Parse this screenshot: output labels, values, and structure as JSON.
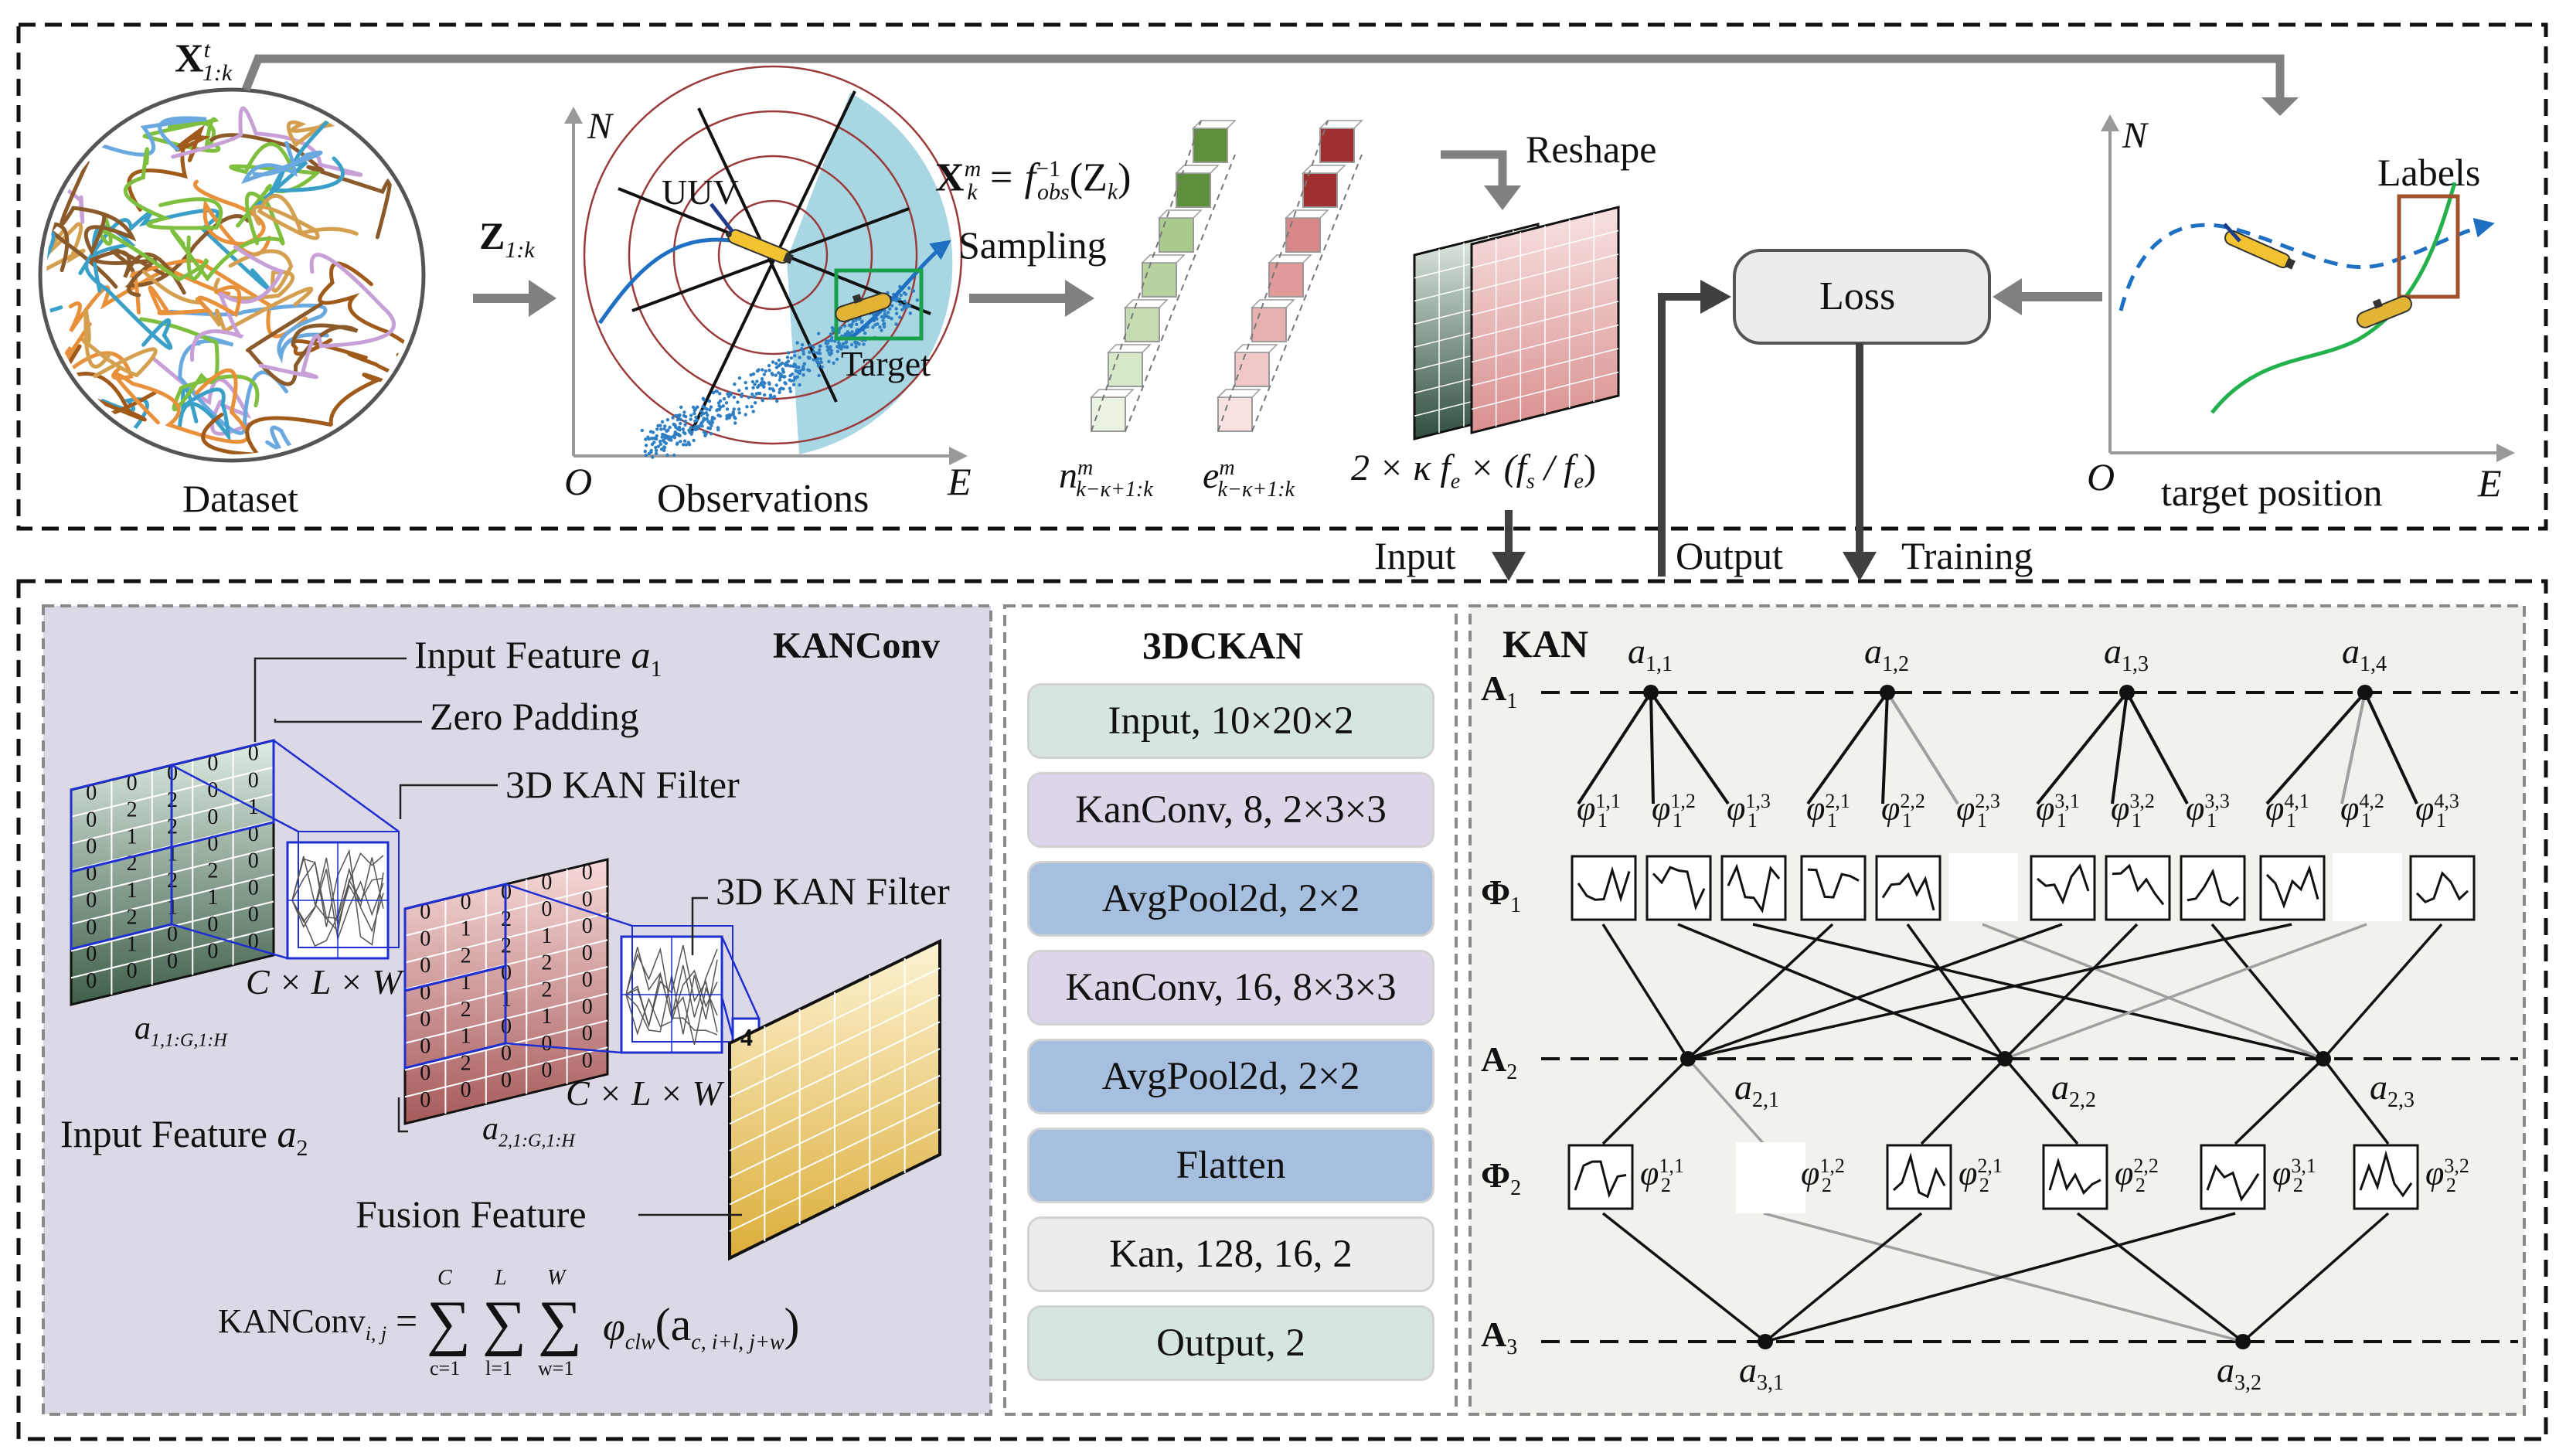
{
  "colors": {
    "kanconv_bg": "#ddd8e6",
    "kan_bg": "#f1f1ee",
    "arrow_gray": "#7f7f7f",
    "sector_blue": "#a9d6e3",
    "grid_green": "#c6dcc8",
    "grid_red": "#e8b8b8",
    "grid_yellow": "#f5dfa0"
  },
  "top": {
    "dataset_label": "Dataset",
    "input_target_sym": "X",
    "input_target_sup": "t",
    "input_target_sub": "1:k",
    "obs_input_sym": "Z",
    "obs_input_sub": "1:k",
    "observation_label": "Observations",
    "axis_n": "N",
    "axis_e": "E",
    "axis_o": "O",
    "uuv_label": "UUV",
    "target_label": "Target",
    "formula_lhs": "X",
    "formula_lhs_sup": "m",
    "formula_lhs_sub": "k",
    "formula_rhs": "= f",
    "formula_rhs_sup": "−1",
    "formula_rhs_sub": "obs",
    "formula_arg": "(Z",
    "formula_arg_sub": "k",
    "formula_close": ")",
    "sampling_label": "Sampling",
    "seq_n": "n",
    "seq_n_sup": "m",
    "seq_n_sub": "k−κ+1:k",
    "seq_e": "e",
    "seq_e_sup": "m",
    "seq_e_sub": "k−κ+1:k",
    "reshape_label": "Reshape",
    "reshape_dims": "2 × κ f",
    "reshape_dims_sub": "e",
    "reshape_dims_tail": "× (f",
    "reshape_dims_sub2": "s",
    "reshape_dims_mid": "/ f",
    "reshape_dims_sub3": "e",
    "reshape_dims_end": ")",
    "loss_label": "Loss",
    "labels_label": "Labels",
    "target_position_label": "target position",
    "input_arrow_label": "Input",
    "output_arrow_label": "Output",
    "training_arrow_label": "Training"
  },
  "kanconv": {
    "title": "KANConv",
    "input_feature_1": "Input Feature ",
    "input_feature_1_var": "a",
    "input_feature_1_sub": "1",
    "zero_padding": "Zero Padding",
    "filter_1": "3D KAN Filter",
    "filter_2": "3D KAN Filter",
    "clw_1": "C × L × W",
    "clw_2": "C × L × W",
    "a1_label": "a",
    "a1_sub": "1,1:G,1:H",
    "a2_label": "a",
    "a2_sub": "2,1:G,1:H",
    "input_feature_2": "Input Feature ",
    "input_feature_2_var": "a",
    "input_feature_2_sub": "2",
    "fusion_feature": "Fusion Feature",
    "filter_value": "4",
    "formula_head": "KANConv",
    "formula_head_sub": "i, j",
    "formula_eq": "=",
    "sum_1_top": "C",
    "sum_1_bottom": "c=1",
    "sum_2_top": "L",
    "sum_2_bottom": "l=1",
    "sum_3_top": "W",
    "sum_3_bottom": "w=1",
    "formula_phi": "φ",
    "formula_phi_sub": "clw",
    "formula_arg": "(a",
    "formula_arg_sub": "c, i+l, j+w",
    "formula_close": ")",
    "grid1_values": [
      [
        "0",
        "0",
        "0",
        "0",
        "0"
      ],
      [
        "0",
        "2",
        "2",
        "0",
        "0"
      ],
      [
        "0",
        "1",
        "2",
        "0",
        "1"
      ],
      [
        "0",
        "2",
        "1",
        "0",
        "0"
      ],
      [
        "0",
        "1",
        "2",
        "2",
        "0"
      ],
      [
        "0",
        "2",
        "1",
        "1",
        "0"
      ],
      [
        "0",
        "1",
        "0",
        "0",
        "0"
      ],
      [
        "0",
        "0",
        "0",
        "0",
        "0"
      ]
    ],
    "grid2_values": [
      [
        "0",
        "0",
        "0",
        "0",
        "0"
      ],
      [
        "0",
        "1",
        "2",
        "0",
        "0"
      ],
      [
        "0",
        "2",
        "2",
        "1",
        "0"
      ],
      [
        "0",
        "1",
        "0",
        "2",
        "0"
      ],
      [
        "0",
        "2",
        "1",
        "2",
        "0"
      ],
      [
        "0",
        "1",
        "0",
        "1",
        "0"
      ],
      [
        "0",
        "2",
        "0",
        "0",
        "0"
      ],
      [
        "0",
        "0",
        "0",
        "0",
        "0"
      ]
    ]
  },
  "cnn": {
    "title": "3DCKAN",
    "layers": [
      "Input, 10×20×2",
      "KanConv, 8, 2×3×3",
      "AvgPool2d, 2×2",
      "KanConv, 16, 8×3×3",
      "AvgPool2d, 2×2",
      "Flatten",
      "Kan, 128, 16, 2",
      "Output, 2"
    ]
  },
  "kan": {
    "title": "KAN",
    "row_a1": "A",
    "row_a1_sub": "1",
    "row_phi1": "Φ",
    "row_phi1_sub": "1",
    "row_a2": "A",
    "row_a2_sub": "2",
    "row_phi2": "Φ",
    "row_phi2_sub": "2",
    "row_a3": "A",
    "row_a3_sub": "3",
    "a1_nodes": [
      "1,1",
      "1,2",
      "1,3",
      "1,4"
    ],
    "a2_nodes": [
      "2,1",
      "2,2",
      "2,3"
    ],
    "a3_nodes": [
      "3,1",
      "3,2"
    ],
    "phi1_sup": [
      "1,1",
      "1,2",
      "1,3",
      "2,1",
      "2,2",
      "2,3",
      "3,1",
      "3,2",
      "3,3",
      "4,1",
      "4,2",
      "4,3"
    ],
    "phi2_sup": [
      "1,1",
      "1,2",
      "2,1",
      "2,2",
      "3,1",
      "3,2"
    ],
    "node_symbol": "a",
    "phi_symbol": "φ",
    "phi1_sub": "1",
    "phi2_sub": "2"
  }
}
